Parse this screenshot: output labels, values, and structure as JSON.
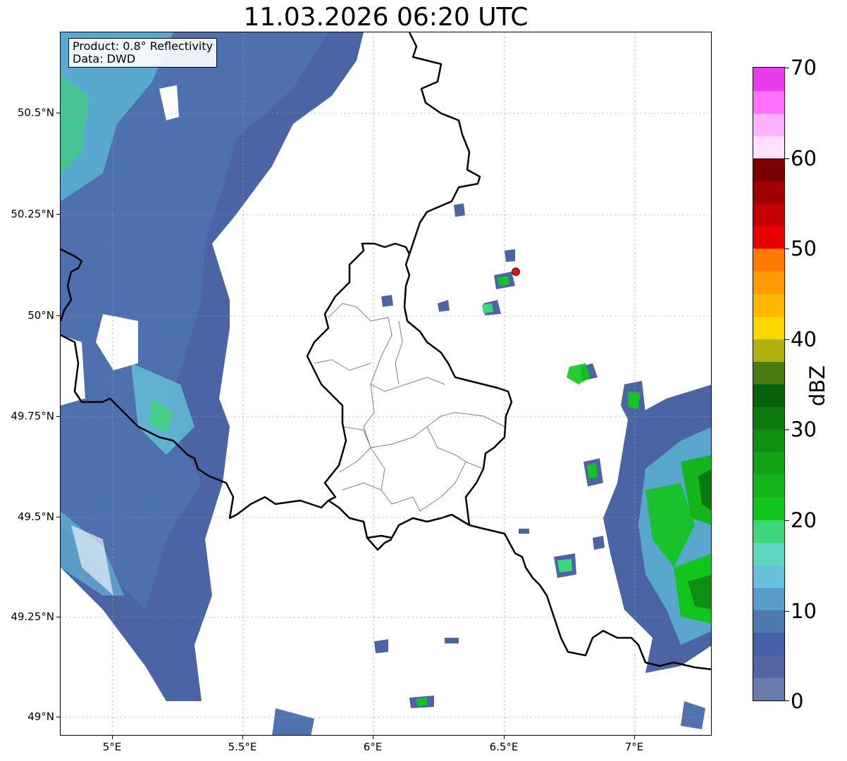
{
  "title": "11.03.2026 06:20 UTC",
  "info_box": {
    "line1": "Product: 0.8° Reflectivity",
    "line2": "Data: DWD"
  },
  "lat_ticks": [
    "50.5°N",
    "50.25°N",
    "50°N",
    "49.75°N",
    "49.5°N",
    "49.25°N",
    "49°N"
  ],
  "lon_ticks": [
    "5°E",
    "5.5°E",
    "6°E",
    "6.5°E",
    "7°E"
  ],
  "colorbar": {
    "unit": "dBZ",
    "labels": [
      "70",
      "60",
      "50",
      "40",
      "30",
      "20",
      "10",
      "0"
    ],
    "colors": [
      "#6a7aad",
      "#5566a5",
      "#4560a8",
      "#4d78b0",
      "#5a9cc8",
      "#68c0dc",
      "#5fd6c0",
      "#3ed67a",
      "#12c51c",
      "#13b51a",
      "#11a315",
      "#0e8f12",
      "#0b7a0e",
      "#08620b",
      "#4a7a10",
      "#b0b010",
      "#ffd700",
      "#ffb800",
      "#ff9a00",
      "#ff7b00",
      "#e60000",
      "#c40000",
      "#a00000",
      "#7a0000",
      "#ffe0ff",
      "#ffb0ff",
      "#ff70ff",
      "#e93aec"
    ]
  },
  "map": {
    "region": "Luxembourg and surroundings",
    "marker_color": "#ff0000",
    "lon_range": [
      4.8,
      7.3
    ],
    "lat_range": [
      48.95,
      50.7
    ]
  }
}
